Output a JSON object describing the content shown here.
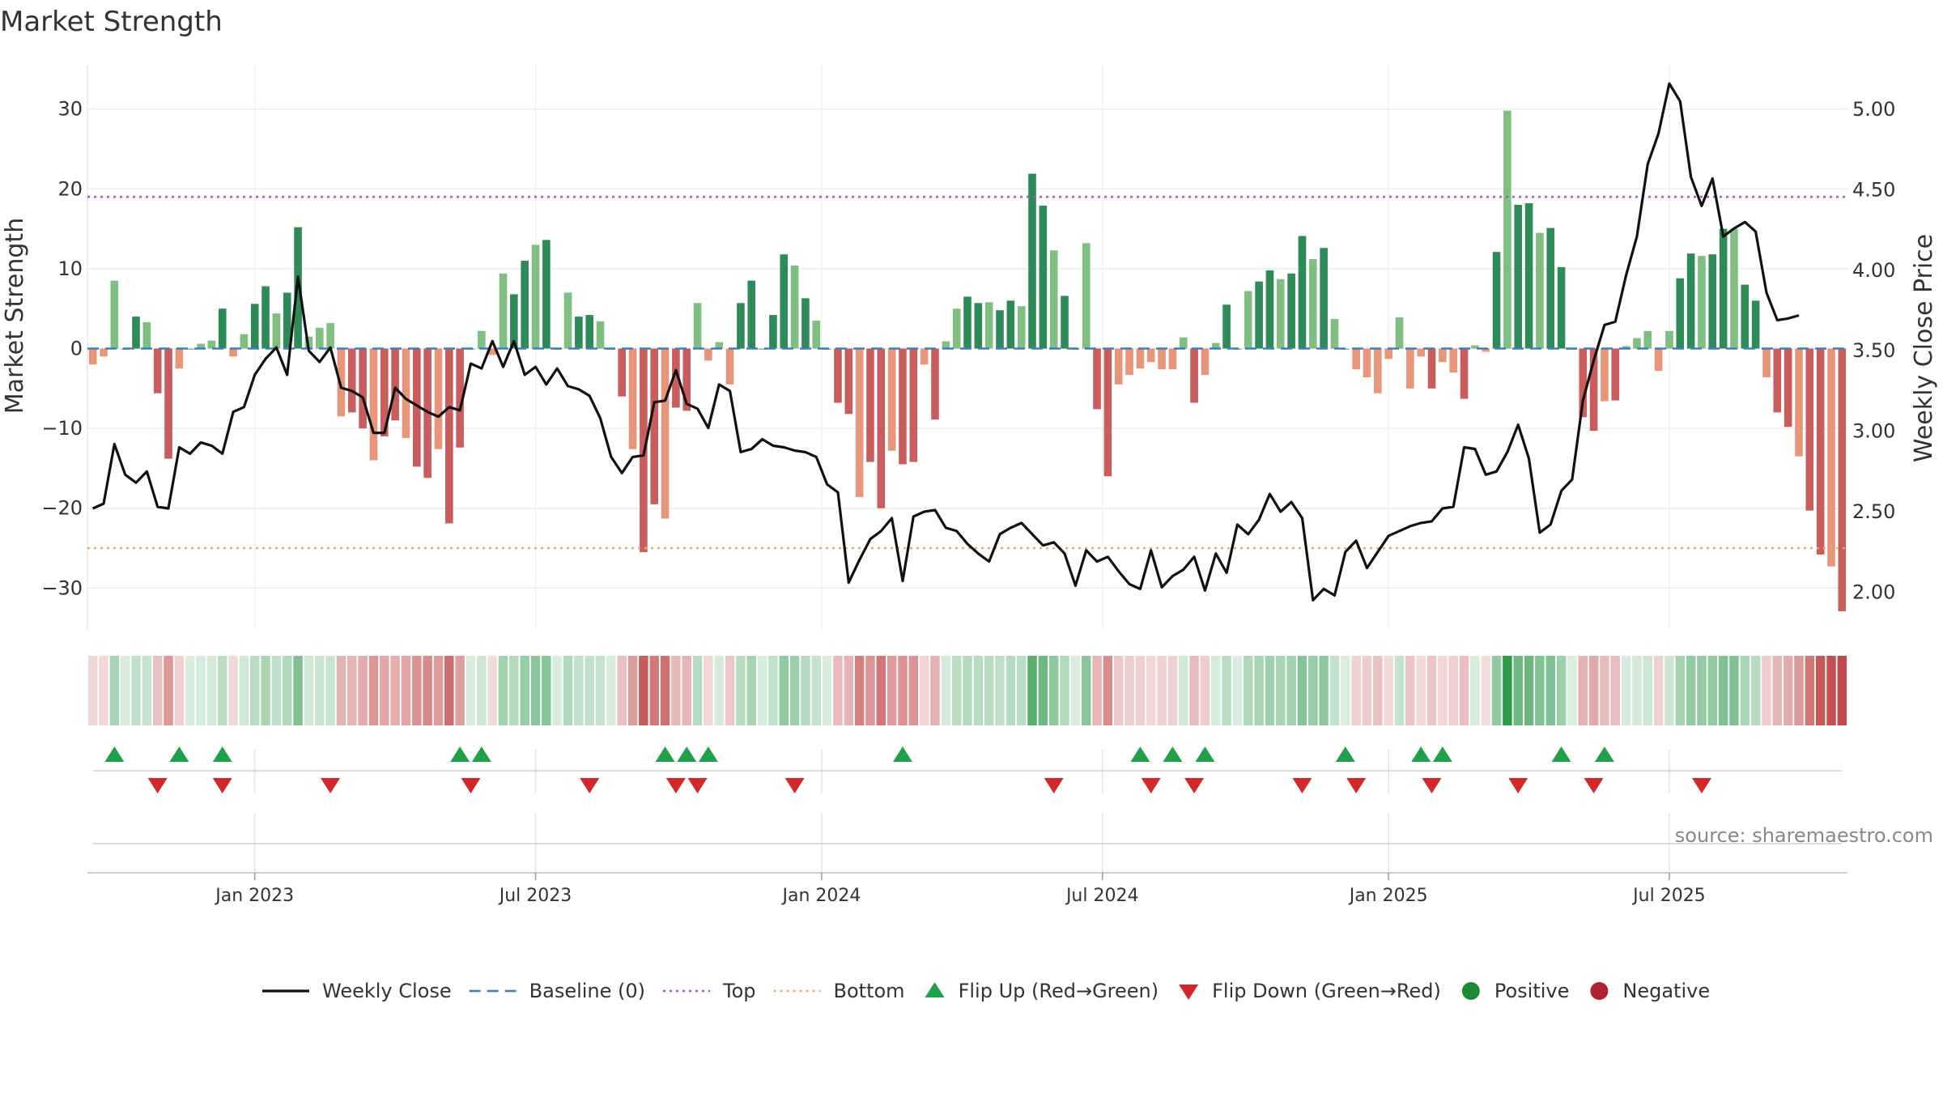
{
  "chart_data": {
    "type": "bar",
    "title": "Market Strength",
    "ylabel": "Market Strength",
    "y2label": "Weekly Close Price",
    "ylim": [
      -35,
      35
    ],
    "y2lim": [
      1.8,
      5.2
    ],
    "yticks": [
      30,
      20,
      10,
      0,
      -10,
      -20,
      -30
    ],
    "ytick_labels": [
      "30",
      "20",
      "10",
      "0",
      "−10",
      "−20",
      "−30"
    ],
    "y2ticks": [
      5.0,
      4.5,
      4.0,
      3.5,
      3.0,
      2.5,
      2.0
    ],
    "y2tick_labels": [
      "5.00",
      "4.50",
      "4.00",
      "3.50",
      "3.00",
      "2.50",
      "2.00"
    ],
    "x_month_ticks": [
      {
        "label": "Jan 2023",
        "week": 15
      },
      {
        "label": "Jul 2023",
        "week": 41
      },
      {
        "label": "Jan 2024",
        "week": 67.5
      },
      {
        "label": "Jul 2024",
        "week": 93.5
      },
      {
        "label": "Jan 2025",
        "week": 120
      },
      {
        "label": "Jul 2025",
        "week": 146
      }
    ],
    "top_line": 19,
    "bottom_line": -25,
    "baseline": 0,
    "strength": [
      -2,
      -1,
      8.5,
      0,
      4,
      3.3,
      -5.6,
      -13.8,
      -2.5,
      0,
      0.6,
      1,
      5,
      -1,
      1.8,
      5.6,
      7.8,
      4.4,
      7,
      15.2,
      1.5,
      2.6,
      3.2,
      -8.5,
      -8,
      -10,
      -14,
      -11,
      -9,
      -11.2,
      -14.8,
      -16.2,
      -12.6,
      -21.9,
      -12.4,
      0,
      2.2,
      -0.8,
      9.4,
      6.8,
      11,
      13,
      13.6,
      0,
      7,
      4,
      4.2,
      3.4,
      0,
      -6,
      -12.6,
      -25.5,
      -19.5,
      -21.3,
      -7.4,
      -7.8,
      5.7,
      -1.5,
      0.8,
      -4.5,
      5.7,
      8.5,
      0,
      4.2,
      11.8,
      10.4,
      6.3,
      3.5,
      0,
      -6.8,
      -8.2,
      -18.6,
      -14.2,
      -20,
      -12.8,
      -14.5,
      -14.2,
      -2,
      -8.9,
      0.9,
      5,
      6.5,
      5.7,
      5.8,
      4.8,
      6,
      5.3,
      21.9,
      17.9,
      12.3,
      6.6,
      0,
      13.2,
      -7.6,
      -16,
      -4.5,
      -3.3,
      -2.5,
      -1.7,
      -2.6,
      -2.6,
      1.4,
      -6.8,
      -3.3,
      0.7,
      5.5,
      0,
      7.2,
      8.4,
      9.8,
      8.7,
      9.4,
      14.1,
      11.2,
      12.6,
      3.7,
      0,
      -2.6,
      -3.6,
      -5.6,
      -1.3,
      3.9,
      -5,
      -1,
      -5,
      -1.7,
      -3,
      -6.3,
      0.4,
      -0.4,
      12.1,
      29.8,
      18,
      18.2,
      14.5,
      15.1,
      10.2,
      0,
      -8.6,
      -10.3,
      -6.6,
      -6.5,
      0.3,
      1.3,
      2.2,
      -2.8,
      2.2,
      8.8,
      11.9,
      11.6,
      11.8,
      15,
      15,
      8,
      6,
      -3.6,
      -8,
      -9.8,
      -13.5,
      -20.3,
      -25.8,
      -27.3,
      -32.9
    ],
    "price": [
      2.52,
      2.55,
      2.92,
      2.73,
      2.68,
      2.75,
      2.53,
      2.52,
      2.9,
      2.86,
      2.93,
      2.91,
      2.86,
      3.12,
      3.15,
      3.35,
      3.45,
      3.52,
      3.35,
      3.96,
      3.5,
      3.43,
      3.52,
      3.27,
      3.25,
      3.21,
      2.99,
      2.99,
      3.27,
      3.2,
      3.16,
      3.12,
      3.09,
      3.15,
      3.13,
      3.42,
      3.39,
      3.56,
      3.4,
      3.56,
      3.35,
      3.4,
      3.29,
      3.39,
      3.28,
      3.26,
      3.22,
      3.08,
      2.84,
      2.74,
      2.84,
      2.85,
      3.18,
      3.19,
      3.38,
      3.17,
      3.14,
      3.02,
      3.29,
      3.25,
      2.87,
      2.89,
      2.95,
      2.91,
      2.9,
      2.88,
      2.87,
      2.84,
      2.67,
      2.62,
      2.06,
      2.2,
      2.33,
      2.38,
      2.46,
      2.07,
      2.47,
      2.5,
      2.51,
      2.4,
      2.38,
      2.3,
      2.24,
      2.19,
      2.36,
      2.4,
      2.43,
      2.36,
      2.29,
      2.31,
      2.24,
      2.04,
      2.26,
      2.19,
      2.22,
      2.13,
      2.05,
      2.02,
      2.26,
      2.03,
      2.1,
      2.14,
      2.22,
      2.01,
      2.24,
      2.12,
      2.42,
      2.36,
      2.45,
      2.61,
      2.5,
      2.56,
      2.46,
      1.95,
      2.02,
      1.98,
      2.25,
      2.32,
      2.15,
      2.25,
      2.35,
      2.38,
      2.41,
      2.43,
      2.44,
      2.52,
      2.53,
      2.9,
      2.89,
      2.73,
      2.75,
      2.87,
      3.04,
      2.83,
      2.37,
      2.42,
      2.63,
      2.7,
      3.19,
      3.44,
      3.66,
      3.68,
      3.97,
      4.21,
      4.66,
      4.85,
      5.16,
      5.05,
      4.58,
      4.4,
      4.57,
      4.21,
      4.26,
      4.3,
      4.24,
      3.86,
      3.69,
      3.7,
      3.72
    ],
    "heat_strip": true,
    "flip_up_weeks": [
      2,
      8,
      12,
      34,
      36,
      53,
      55,
      57,
      75,
      97,
      100,
      103,
      116,
      123,
      125,
      136,
      140
    ],
    "flip_down_weeks": [
      6,
      12,
      22,
      35,
      46,
      54,
      56,
      65,
      89,
      98,
      102,
      112,
      117,
      124,
      132,
      139,
      149
    ],
    "colors": {
      "strong_green": "#2e8b57",
      "light_green": "#7fbf7f",
      "strong_red": "#c95c5c",
      "light_red": "#e8967a",
      "price_line": "#111111",
      "baseline": "#3b7fc4",
      "top": "#9b59d0",
      "bottom": "#f0a868",
      "flip_up": "#21a04a",
      "flip_down": "#d62728",
      "positive": "#1e8a33",
      "negative": "#b22234"
    },
    "legend": [
      {
        "label": "Weekly Close",
        "kind": "line-solid"
      },
      {
        "label": "Baseline (0)",
        "kind": "line-dash"
      },
      {
        "label": "Top",
        "kind": "line-dot-top"
      },
      {
        "label": "Bottom",
        "kind": "line-dot-bottom"
      },
      {
        "label": "Flip Up (Red→Green)",
        "kind": "tri-up"
      },
      {
        "label": "Flip Down (Green→Red)",
        "kind": "tri-down"
      },
      {
        "label": "Positive",
        "kind": "dot-pos"
      },
      {
        "label": "Negative",
        "kind": "dot-neg"
      }
    ]
  },
  "source": "source: sharemaestro.com"
}
